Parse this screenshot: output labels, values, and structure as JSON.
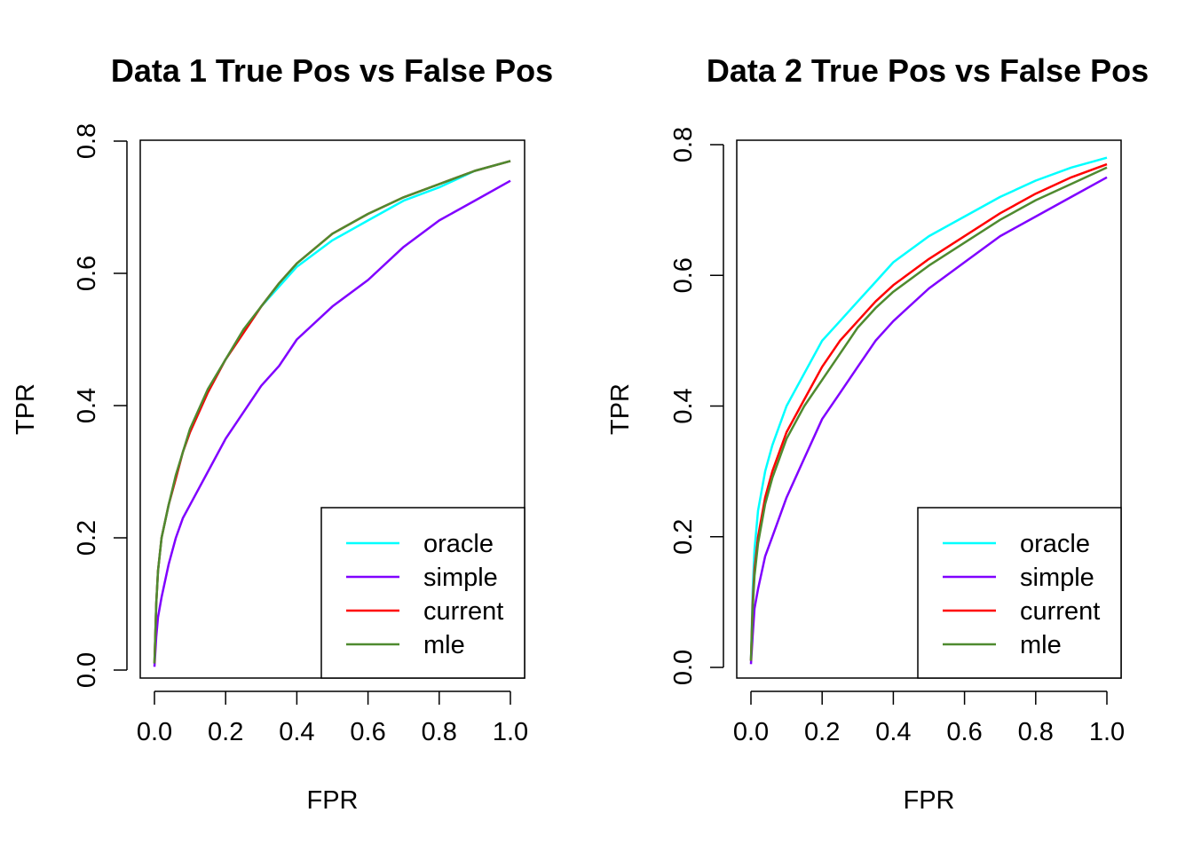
{
  "chart_data": [
    {
      "type": "line",
      "title": "Data 1 True Pos vs False Pos",
      "xlabel": "FPR",
      "ylabel": "TPR",
      "xlim": [
        0,
        1
      ],
      "ylim": [
        0,
        0.8
      ],
      "xticks": [
        "0.0",
        "0.2",
        "0.4",
        "0.6",
        "0.8",
        "1.0"
      ],
      "yticks": [
        "0.0",
        "0.2",
        "0.4",
        "0.6",
        "0.8"
      ],
      "legend_position": "bottom-right",
      "series": [
        {
          "name": "oracle",
          "color": "#00ffff",
          "x": [
            0,
            0.005,
            0.01,
            0.02,
            0.04,
            0.06,
            0.08,
            0.1,
            0.15,
            0.2,
            0.25,
            0.3,
            0.35,
            0.4,
            0.5,
            0.6,
            0.7,
            0.8,
            0.9,
            1.0
          ],
          "y": [
            0.01,
            0.1,
            0.15,
            0.2,
            0.25,
            0.29,
            0.33,
            0.36,
            0.42,
            0.47,
            0.51,
            0.55,
            0.58,
            0.61,
            0.65,
            0.68,
            0.71,
            0.73,
            0.755,
            0.77
          ]
        },
        {
          "name": "simple",
          "color": "#8000ff",
          "x": [
            0,
            0.005,
            0.01,
            0.02,
            0.04,
            0.06,
            0.08,
            0.1,
            0.15,
            0.2,
            0.25,
            0.3,
            0.35,
            0.4,
            0.5,
            0.6,
            0.7,
            0.8,
            0.9,
            1.0
          ],
          "y": [
            0.005,
            0.05,
            0.08,
            0.11,
            0.16,
            0.2,
            0.23,
            0.25,
            0.3,
            0.35,
            0.39,
            0.43,
            0.46,
            0.5,
            0.55,
            0.59,
            0.64,
            0.68,
            0.71,
            0.74
          ]
        },
        {
          "name": "current",
          "color": "#ff0000",
          "x": [
            0,
            0.005,
            0.01,
            0.02,
            0.04,
            0.06,
            0.08,
            0.1,
            0.15,
            0.2,
            0.25,
            0.3,
            0.35,
            0.4,
            0.5,
            0.6,
            0.7,
            0.8,
            0.9,
            1.0
          ],
          "y": [
            0.01,
            0.1,
            0.15,
            0.2,
            0.25,
            0.29,
            0.33,
            0.36,
            0.42,
            0.47,
            0.51,
            0.55,
            0.585,
            0.615,
            0.66,
            0.69,
            0.715,
            0.735,
            0.755,
            0.77
          ]
        },
        {
          "name": "mle",
          "color": "#4f8a2f",
          "x": [
            0,
            0.005,
            0.01,
            0.02,
            0.04,
            0.06,
            0.08,
            0.1,
            0.15,
            0.2,
            0.25,
            0.3,
            0.35,
            0.4,
            0.5,
            0.6,
            0.7,
            0.8,
            0.9,
            1.0
          ],
          "y": [
            0.01,
            0.1,
            0.15,
            0.2,
            0.25,
            0.295,
            0.33,
            0.365,
            0.425,
            0.47,
            0.515,
            0.55,
            0.585,
            0.615,
            0.66,
            0.69,
            0.715,
            0.735,
            0.755,
            0.77
          ]
        }
      ]
    },
    {
      "type": "line",
      "title": "Data 2 True Pos vs False Pos",
      "xlabel": "FPR",
      "ylabel": "TPR",
      "xlim": [
        0,
        1
      ],
      "ylim": [
        0,
        0.8
      ],
      "xticks": [
        "0.0",
        "0.2",
        "0.4",
        "0.6",
        "0.8",
        "1.0"
      ],
      "yticks": [
        "0.0",
        "0.2",
        "0.4",
        "0.6",
        "0.8"
      ],
      "legend_position": "bottom-right",
      "series": [
        {
          "name": "oracle",
          "color": "#00ffff",
          "x": [
            0,
            0.005,
            0.01,
            0.02,
            0.04,
            0.06,
            0.08,
            0.1,
            0.15,
            0.2,
            0.25,
            0.3,
            0.35,
            0.4,
            0.5,
            0.6,
            0.7,
            0.8,
            0.9,
            1.0
          ],
          "y": [
            0.01,
            0.12,
            0.18,
            0.24,
            0.3,
            0.34,
            0.37,
            0.4,
            0.45,
            0.5,
            0.53,
            0.56,
            0.59,
            0.62,
            0.66,
            0.69,
            0.72,
            0.745,
            0.765,
            0.78
          ]
        },
        {
          "name": "simple",
          "color": "#8000ff",
          "x": [
            0,
            0.005,
            0.01,
            0.02,
            0.04,
            0.06,
            0.08,
            0.1,
            0.15,
            0.2,
            0.25,
            0.3,
            0.35,
            0.4,
            0.5,
            0.6,
            0.7,
            0.8,
            0.9,
            1.0
          ],
          "y": [
            0.005,
            0.05,
            0.09,
            0.12,
            0.17,
            0.2,
            0.23,
            0.26,
            0.32,
            0.38,
            0.42,
            0.46,
            0.5,
            0.53,
            0.58,
            0.62,
            0.66,
            0.69,
            0.72,
            0.75
          ]
        },
        {
          "name": "current",
          "color": "#ff0000",
          "x": [
            0,
            0.005,
            0.01,
            0.02,
            0.04,
            0.06,
            0.08,
            0.1,
            0.15,
            0.2,
            0.25,
            0.3,
            0.35,
            0.4,
            0.5,
            0.6,
            0.7,
            0.8,
            0.9,
            1.0
          ],
          "y": [
            0.01,
            0.1,
            0.15,
            0.2,
            0.26,
            0.3,
            0.33,
            0.36,
            0.41,
            0.46,
            0.5,
            0.53,
            0.56,
            0.585,
            0.625,
            0.66,
            0.695,
            0.725,
            0.75,
            0.77
          ]
        },
        {
          "name": "mle",
          "color": "#4f8a2f",
          "x": [
            0,
            0.005,
            0.01,
            0.02,
            0.04,
            0.06,
            0.08,
            0.1,
            0.15,
            0.2,
            0.25,
            0.3,
            0.35,
            0.4,
            0.5,
            0.6,
            0.7,
            0.8,
            0.9,
            1.0
          ],
          "y": [
            0.01,
            0.09,
            0.14,
            0.19,
            0.25,
            0.29,
            0.32,
            0.35,
            0.4,
            0.44,
            0.48,
            0.52,
            0.55,
            0.575,
            0.615,
            0.65,
            0.685,
            0.715,
            0.74,
            0.765
          ]
        }
      ]
    }
  ]
}
